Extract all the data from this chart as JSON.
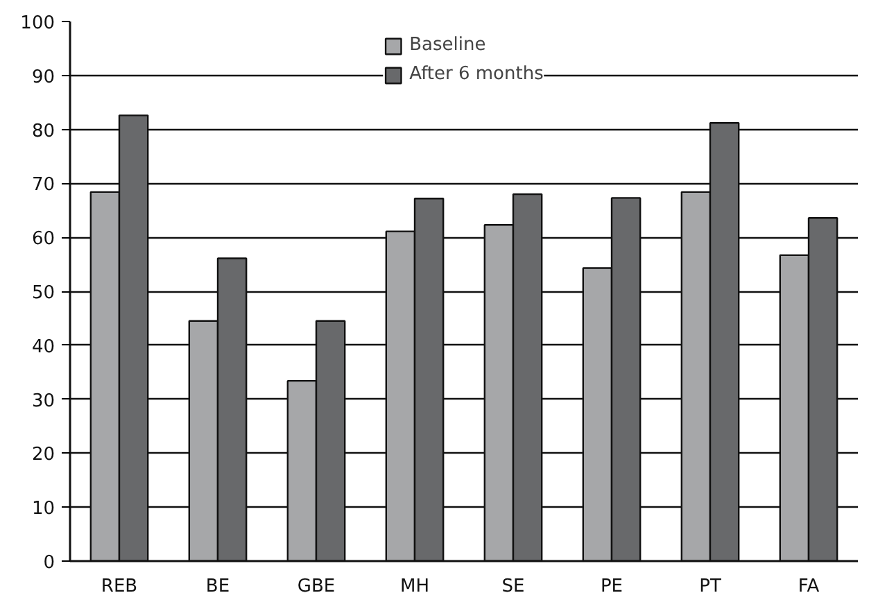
{
  "chart_data": {
    "type": "bar",
    "categories": [
      "REB",
      "BE",
      "GBE",
      "MH",
      "SE",
      "PE",
      "PT",
      "FA"
    ],
    "series": [
      {
        "name": "Baseline",
        "color": "#a6a7a9",
        "values": [
          68.4,
          44.5,
          33.4,
          61.1,
          62.3,
          54.3,
          68.4,
          56.7
        ]
      },
      {
        "name": "After 6 months",
        "color": "#68696b",
        "values": [
          82.6,
          56.1,
          44.5,
          67.2,
          68.0,
          67.3,
          81.2,
          63.6
        ]
      }
    ],
    "ylim": [
      0,
      100
    ],
    "yticks": [
      0,
      10,
      20,
      30,
      40,
      50,
      60,
      70,
      80,
      90,
      100
    ],
    "grid": "y",
    "legend": "top"
  }
}
